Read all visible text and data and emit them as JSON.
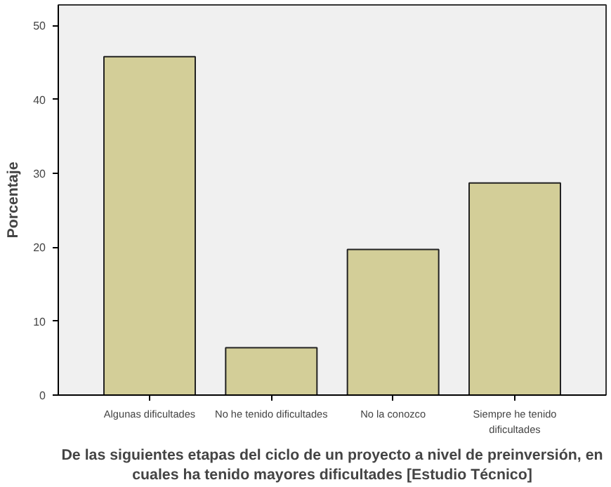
{
  "chart_data": {
    "type": "bar",
    "categories": [
      "Algunas dificultades",
      "No he tenido dificultades",
      "No la conozco",
      "Siempre he tenido\ndificultades"
    ],
    "values": [
      45.8,
      6.4,
      19.7,
      28.7
    ],
    "color": "#d3ce98",
    "ylabel": "Porcentaje",
    "xlabel": "De las siguientes etapas del ciclo de un proyecto a nivel de preinversión, en\ncuales ha tenido mayores dificultades [Estudio Técnico]",
    "ylim": [
      0,
      52.8
    ],
    "yticks": [
      0,
      10,
      20,
      30,
      40,
      50
    ],
    "grid": false
  }
}
